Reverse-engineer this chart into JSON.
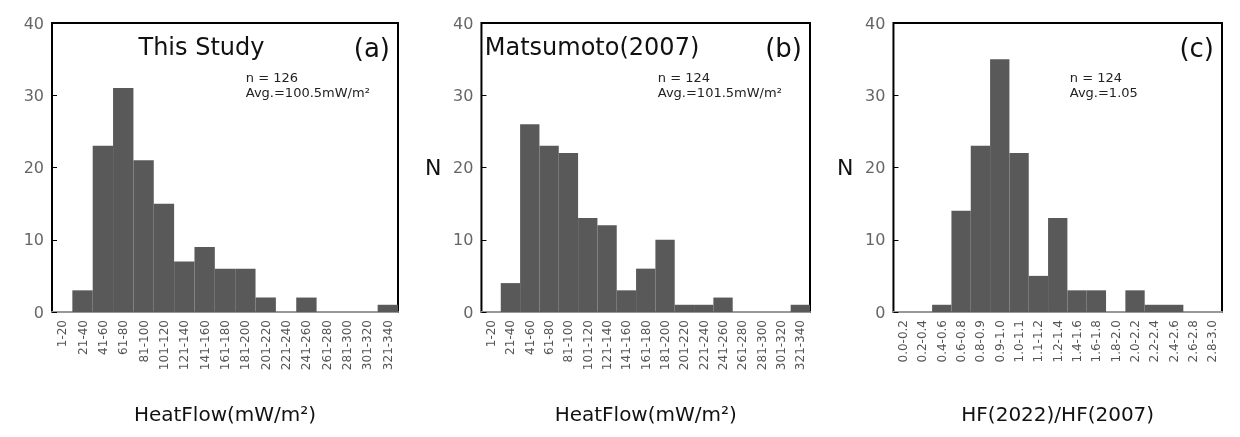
{
  "chart_data": [
    {
      "type": "bar",
      "title": "This Study",
      "annotations": [
        "(a)",
        "n = 126",
        "Avg.=100.5mW/m²"
      ],
      "xlabel": "HeatFlow(mW/m²)",
      "categories": [
        "1-20",
        "21-40",
        "41-60",
        "61-80",
        "81-100",
        "101-120",
        "121-140",
        "141-160",
        "161-180",
        "181-200",
        "201-220",
        "221-240",
        "241-260",
        "261-280",
        "281-300",
        "301-320",
        "321-340"
      ],
      "values": [
        0,
        3,
        23,
        31,
        21,
        15,
        7,
        9,
        6,
        6,
        2,
        0,
        2,
        0,
        0,
        0,
        1
      ],
      "color": "#595959",
      "ylim": [
        0,
        40
      ],
      "yticks": [
        0,
        10,
        20,
        30,
        40
      ],
      "grid": false
    },
    {
      "type": "bar",
      "title": "Matsumoto(2007)",
      "annotations": [
        "(b)",
        "n = 124",
        "Avg.=101.5mW/m²"
      ],
      "xlabel": "HeatFlow(mW/m²)",
      "ylabel": "N",
      "categories": [
        "1-20",
        "21-40",
        "41-60",
        "61-80",
        "81-100",
        "101-120",
        "121-140",
        "141-160",
        "161-180",
        "181-200",
        "201-220",
        "221-240",
        "241-260",
        "261-280",
        "281-300",
        "301-320",
        "321-340"
      ],
      "values": [
        0,
        4,
        26,
        23,
        22,
        13,
        12,
        3,
        6,
        10,
        1,
        1,
        2,
        0,
        0,
        0,
        1
      ],
      "color": "#595959",
      "ylim": [
        0,
        40
      ],
      "yticks": [
        0,
        10,
        20,
        30,
        40
      ],
      "grid": false
    },
    {
      "type": "bar",
      "annotations": [
        "(c)",
        "n = 124",
        "Avg.=1.05"
      ],
      "xlabel": "HF(2022)/HF(2007)",
      "ylabel": "N",
      "categories": [
        "0.0-0.2",
        "0.2-0.4",
        "0.4-0.6",
        "0.6-0.8",
        "0.8-0.9",
        "0.9-1.0",
        "1.0-1.1",
        "1.1-1.2",
        "1.2-1.4",
        "1.4-1.6",
        "1.6-1.8",
        "1.8-2.0",
        "2.0-2.2",
        "2.2-2.4",
        "2.4-2.6",
        "2.6-2.8",
        "2.8-3.0"
      ],
      "values": [
        0,
        0,
        1,
        14,
        23,
        35,
        22,
        5,
        13,
        3,
        3,
        0,
        3,
        1,
        1,
        0,
        0
      ],
      "color": "#595959",
      "ylim": [
        0,
        40
      ],
      "yticks": [
        0,
        10,
        20,
        30,
        40
      ],
      "grid": false
    }
  ]
}
